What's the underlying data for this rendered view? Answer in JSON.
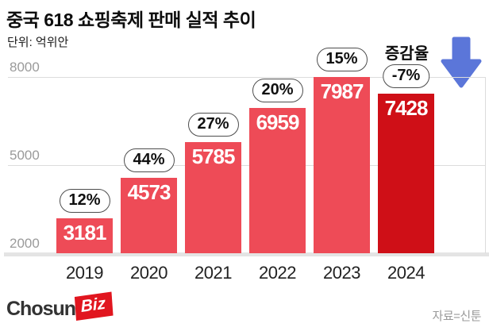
{
  "header": {
    "title": "중국 618 쇼핑축제 판매 실적 추이",
    "unit_label": "단위: 억위안"
  },
  "chart_data": {
    "type": "bar",
    "title": "중국 618 쇼핑축제 판매 실적 추이",
    "unit": "억위안",
    "categories": [
      "2019",
      "2020",
      "2021",
      "2022",
      "2023",
      "2024"
    ],
    "values": [
      3181,
      4573,
      5785,
      6959,
      7987,
      7428
    ],
    "growth_labels": [
      "12%",
      "44%",
      "27%",
      "20%",
      "15%",
      "-7%"
    ],
    "growth_legend": "증감율",
    "y_ticks": [
      2000,
      5000,
      8000
    ],
    "ylim": [
      2000,
      8000
    ],
    "grid": "horizontal",
    "bar_color_default": "#ee4b57",
    "bar_color_highlight": "#cf0f17",
    "highlight_index": 5,
    "arrow_color": "#5b76d9"
  },
  "footer": {
    "logo_chosun": "Chosun",
    "logo_biz": "Biz",
    "source": "자료=신툰"
  }
}
